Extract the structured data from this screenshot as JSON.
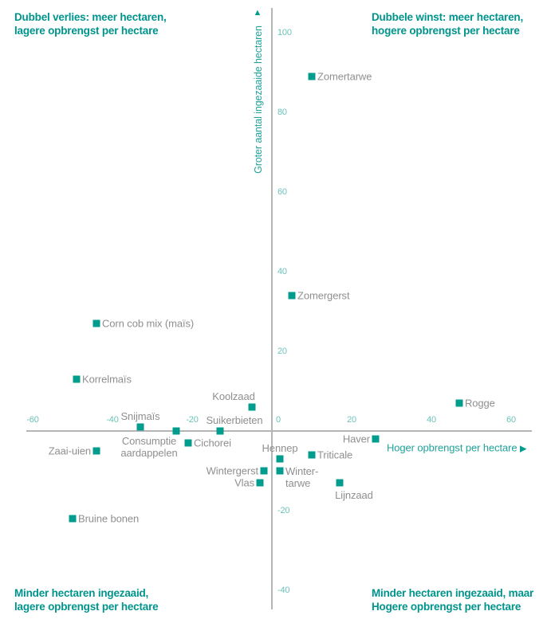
{
  "colors": {
    "title_teal": "#00948c",
    "point_teal": "#009c8e",
    "axis_label_teal": "#1fa29a",
    "tick_teal": "#6cc3bb",
    "label_gray": "#8f8f8f",
    "axis_line_gray": "#b5b5b5"
  },
  "quadrants": {
    "top_left": {
      "line1": "Dubbel verlies: meer hectaren,",
      "line2": "lagere opbrengst per hectare"
    },
    "top_right": {
      "line1": "Dubbele winst: meer hectaren,",
      "line2": "hogere opbrengst per hectare"
    },
    "bottom_left": {
      "line1": "Minder hectaren ingezaaid,",
      "line2": "lagere opbrengst per hectare"
    },
    "bottom_right": {
      "line1": "Minder hectaren ingezaaid, maar",
      "line2": "Hogere opbrengst per hectare"
    }
  },
  "axes": {
    "x_label": "Hoger opbrengst per hectare",
    "x_arrow": "▶",
    "y_label": "Groter aantal ingezaaide hectaren",
    "y_arrow": "▲"
  },
  "chart_data": {
    "type": "scatter",
    "xlabel": "Hoger opbrengst per hectare",
    "ylabel": "Groter aantal ingezaaide hectaren",
    "xlim": [
      -68,
      69
    ],
    "ylim": [
      -47,
      106
    ],
    "x_ticks": [
      -60,
      -40,
      -20,
      0,
      20,
      40,
      60
    ],
    "y_ticks": [
      100,
      80,
      60,
      40,
      20,
      -20,
      -40
    ],
    "grid": false,
    "legend": "none",
    "marker": "square",
    "points": [
      {
        "name": "Zomertarwe",
        "x": 10,
        "y": 89,
        "label_pos": "right"
      },
      {
        "name": "Zomergerst",
        "x": 5,
        "y": 34,
        "label_pos": "right"
      },
      {
        "name": "Corn cob mix (maïs)",
        "x": -44,
        "y": 27,
        "label_pos": "right"
      },
      {
        "name": "Korrelmaïs",
        "x": -49,
        "y": 13,
        "label_pos": "right"
      },
      {
        "name": "Koolzaad",
        "x": -5,
        "y": 6,
        "label_pos": "above",
        "ldx": -23
      },
      {
        "name": "Snijmaïs",
        "x": -33,
        "y": 1,
        "label_pos": "above"
      },
      {
        "name": "Suikerbieten",
        "x": -13,
        "y": 0,
        "label_pos": "above",
        "ldx": 18
      },
      {
        "name": "Consumptie aardappelen",
        "label": "Consumptie\naardappelen",
        "x": -24,
        "y": 0,
        "label_pos": "below",
        "ldx": -34,
        "ldy": -3
      },
      {
        "name": "Zaai-uien",
        "x": -44,
        "y": -5,
        "label_pos": "left"
      },
      {
        "name": "Cichorei",
        "x": -21,
        "y": -3,
        "label_pos": "right"
      },
      {
        "name": "Wintergerst",
        "x": -2,
        "y": -10,
        "label_pos": "left"
      },
      {
        "name": "Vlas",
        "x": -3,
        "y": -13,
        "label_pos": "left"
      },
      {
        "name": "Hennep",
        "x": 2,
        "y": -7,
        "label_pos": "above"
      },
      {
        "name": "Wintertarwe",
        "label": "Winter-\ntarwe",
        "x": 2,
        "y": -10,
        "label_pos": "right",
        "ldy": 8
      },
      {
        "name": "Triticale",
        "x": 10,
        "y": -6,
        "label_pos": "right"
      },
      {
        "name": "Haver",
        "x": 26,
        "y": -2,
        "label_pos": "left"
      },
      {
        "name": "Lijnzaad",
        "x": 17,
        "y": -13,
        "label_pos": "below",
        "ldx": 18
      },
      {
        "name": "Rogge",
        "x": 47,
        "y": 7,
        "label_pos": "right"
      },
      {
        "name": "Bruine bonen",
        "x": -50,
        "y": -22,
        "label_pos": "right"
      }
    ]
  }
}
